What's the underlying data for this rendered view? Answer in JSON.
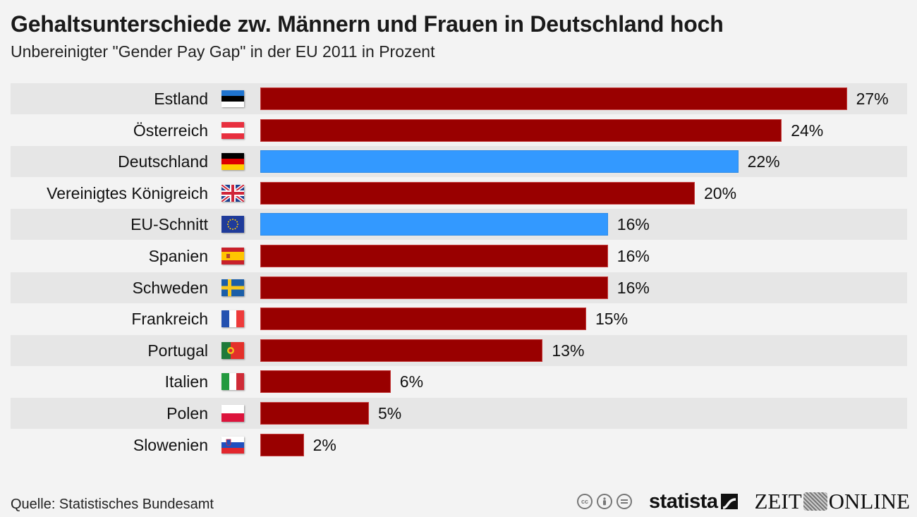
{
  "header": {
    "title": "Gehaltsunterschiede zw. Männern und Frauen in Deutschland hoch",
    "subtitle": "Unbereinigter \"Gender Pay Gap\" in der EU 2011 in Prozent"
  },
  "footer": {
    "source": "Quelle: Statistisches Bundesamt",
    "license_icons": [
      "cc-icon",
      "by-person-icon",
      "nd-equals-icon"
    ],
    "cc_label": "cc",
    "brand_statista": "statista",
    "brand_zeit_left": "ZEIT",
    "brand_zeit_right": "ONLINE"
  },
  "colors": {
    "default_bar": "#990000",
    "highlight_bar": "#3399ff",
    "band_alt": "#e6e6e6",
    "background": "#f3f3f3"
  },
  "chart_data": {
    "type": "bar",
    "orientation": "horizontal",
    "title": "Gehaltsunterschiede zw. Männern und Frauen in Deutschland hoch",
    "subtitle": "Unbereinigter \"Gender Pay Gap\" in der EU 2011 in Prozent",
    "xlabel": "",
    "ylabel": "",
    "unit": "%",
    "xlim": [
      0,
      27
    ],
    "grid": false,
    "legend": "none",
    "categories": [
      "Estland",
      "Österreich",
      "Deutschland",
      "Vereinigtes Königreich",
      "EU-Schnitt",
      "Spanien",
      "Schweden",
      "Frankreich",
      "Portugal",
      "Italien",
      "Polen",
      "Slowenien"
    ],
    "values": [
      27,
      24,
      22,
      20,
      16,
      16,
      16,
      15,
      13,
      6,
      5,
      2
    ],
    "value_labels": [
      "27%",
      "24%",
      "22%",
      "20%",
      "16%",
      "16%",
      "16%",
      "15%",
      "13%",
      "6%",
      "5%",
      "2%"
    ],
    "highlighted": [
      "Deutschland",
      "EU-Schnitt"
    ],
    "flags": [
      "estonia-flag-icon",
      "austria-flag-icon",
      "germany-flag-icon",
      "uk-flag-icon",
      "eu-flag-icon",
      "spain-flag-icon",
      "sweden-flag-icon",
      "france-flag-icon",
      "portugal-flag-icon",
      "italy-flag-icon",
      "poland-flag-icon",
      "slovenia-flag-icon"
    ]
  }
}
